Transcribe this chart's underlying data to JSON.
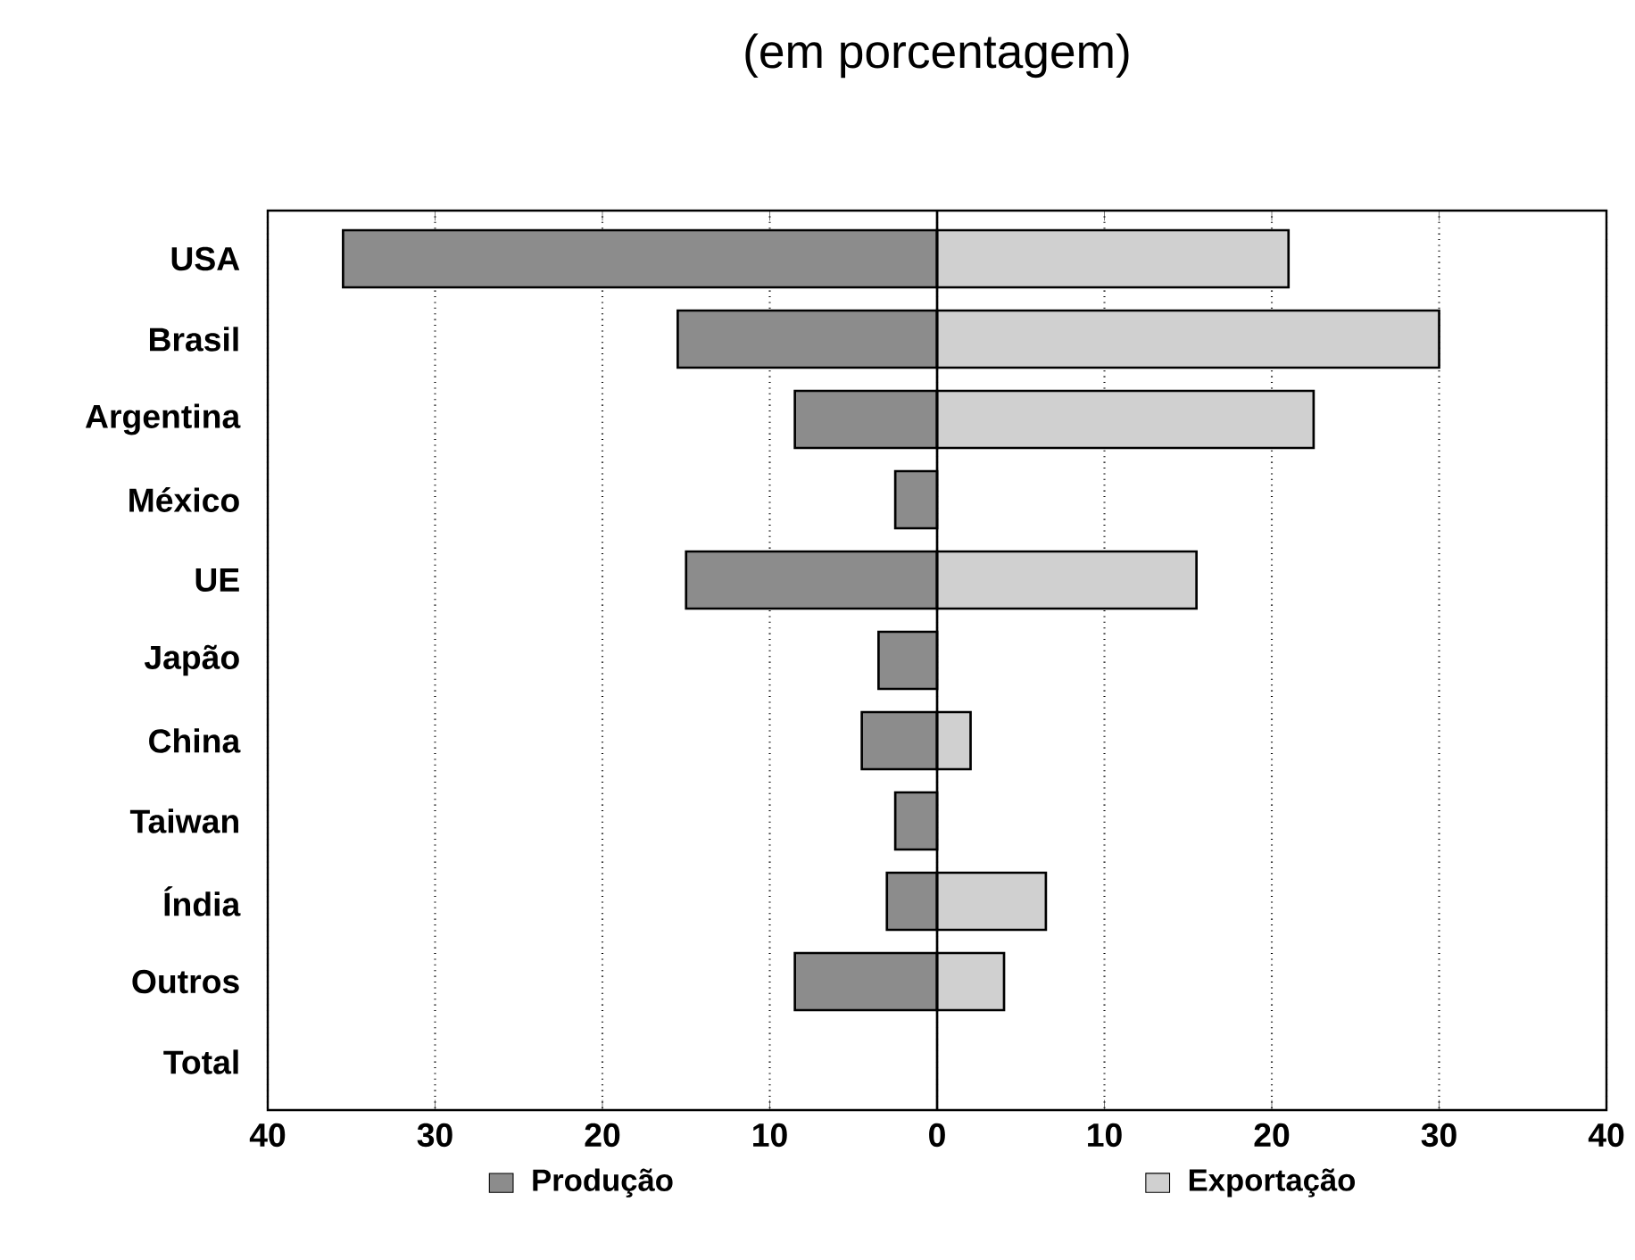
{
  "chart_data": {
    "type": "bar",
    "orientation": "horizontal",
    "title": "(em porcentagem)",
    "categories": [
      "USA",
      "Brasil",
      "Argentina",
      "México",
      "UE",
      "Japão",
      "China",
      "Taiwan",
      "Índia",
      "Outros",
      "Total"
    ],
    "series": [
      {
        "name": "Produção",
        "color": "#8c8c8c",
        "values": [
          -35.5,
          -15.5,
          -8.5,
          -2.5,
          -15,
          -3.5,
          -4.5,
          -2.5,
          -3,
          -8.5,
          null
        ]
      },
      {
        "name": "Exportação",
        "color": "#d0d0d0",
        "values": [
          21,
          30,
          22.5,
          null,
          15.5,
          null,
          2,
          null,
          6.5,
          4,
          null
        ]
      }
    ],
    "xlim": [
      -40,
      40
    ],
    "xticks": [
      {
        "value": -40,
        "label": "40"
      },
      {
        "value": -30,
        "label": "30"
      },
      {
        "value": -20,
        "label": "20"
      },
      {
        "value": -10,
        "label": "10"
      },
      0,
      10,
      20,
      30,
      40
    ],
    "stacked": true,
    "grid": "x",
    "legend": "bottom"
  }
}
